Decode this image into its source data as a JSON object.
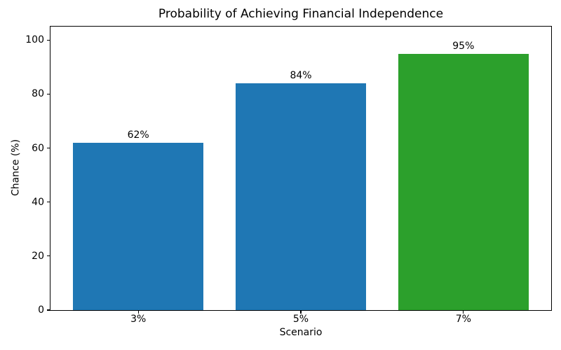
{
  "chart_data": {
    "type": "bar",
    "title": "Probability of Achieving Financial Independence",
    "xlabel": "Scenario",
    "ylabel": "Chance (%)",
    "categories": [
      "3%",
      "5%",
      "7%"
    ],
    "values": [
      62,
      84,
      95
    ],
    "bar_labels": [
      "62%",
      "84%",
      "95%"
    ],
    "bar_colors": [
      "#1f77b4",
      "#1f77b4",
      "#2ca02c"
    ],
    "yticks": [
      0,
      20,
      40,
      60,
      80,
      100
    ],
    "ylim": [
      0,
      105
    ],
    "xlim": [
      -0.54,
      2.54
    ],
    "bar_width_units": 0.8,
    "grid": false,
    "legend_position": "none",
    "axes_color": "#000000",
    "text_color": "#000000",
    "background_color": "#ffffff"
  }
}
